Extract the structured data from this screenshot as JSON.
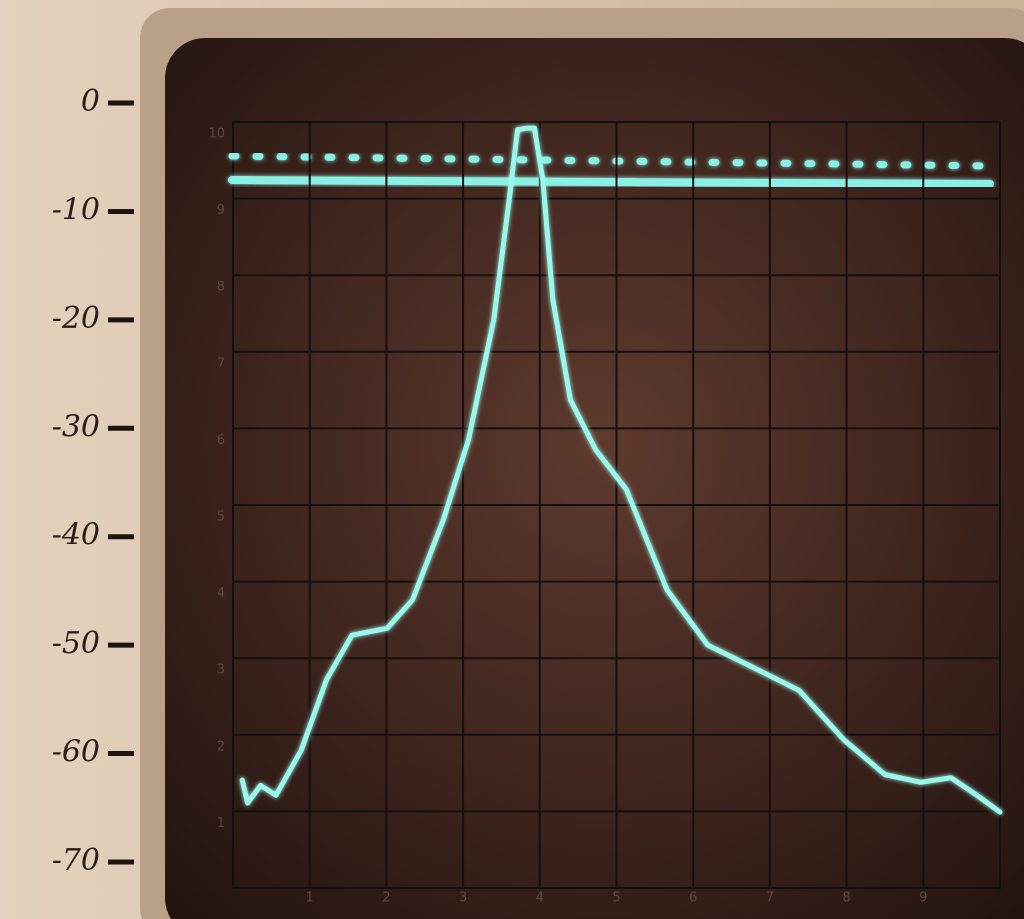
{
  "chart_data": {
    "type": "line",
    "x": [
      0.12,
      0.19,
      0.36,
      0.56,
      0.89,
      1.22,
      1.55,
      2.01,
      2.34,
      2.74,
      3.07,
      3.4,
      3.6,
      3.71,
      3.83,
      3.93,
      4.04,
      4.17,
      4.4,
      4.73,
      5.13,
      5.66,
      6.19,
      6.72,
      7.38,
      7.97,
      8.5,
      8.97,
      9.36,
      9.7,
      10.0
    ],
    "values": [
      1.41,
      1.11,
      1.34,
      1.21,
      1.8,
      2.72,
      3.3,
      3.39,
      3.76,
      4.8,
      5.85,
      7.42,
      8.98,
      9.9,
      9.92,
      9.92,
      9.24,
      7.68,
      6.37,
      5.72,
      5.2,
      3.89,
      3.17,
      2.91,
      2.58,
      1.93,
      1.48,
      1.38,
      1.44,
      1.21,
      0.99
    ],
    "color": "#9af7ea",
    "xlim": [
      0,
      10
    ],
    "ylim": [
      0,
      10
    ],
    "xticks": [
      1,
      2,
      3,
      4,
      5,
      6,
      7,
      8,
      9
    ],
    "yticks": [
      1,
      2,
      3,
      4,
      5,
      6,
      7,
      8,
      9,
      10
    ],
    "y2lim": [
      -72.4,
      -1.75
    ],
    "y2ticks": [
      0,
      -10,
      -20,
      -30,
      -40,
      -50,
      -60,
      -70
    ],
    "grid": true
  }
}
